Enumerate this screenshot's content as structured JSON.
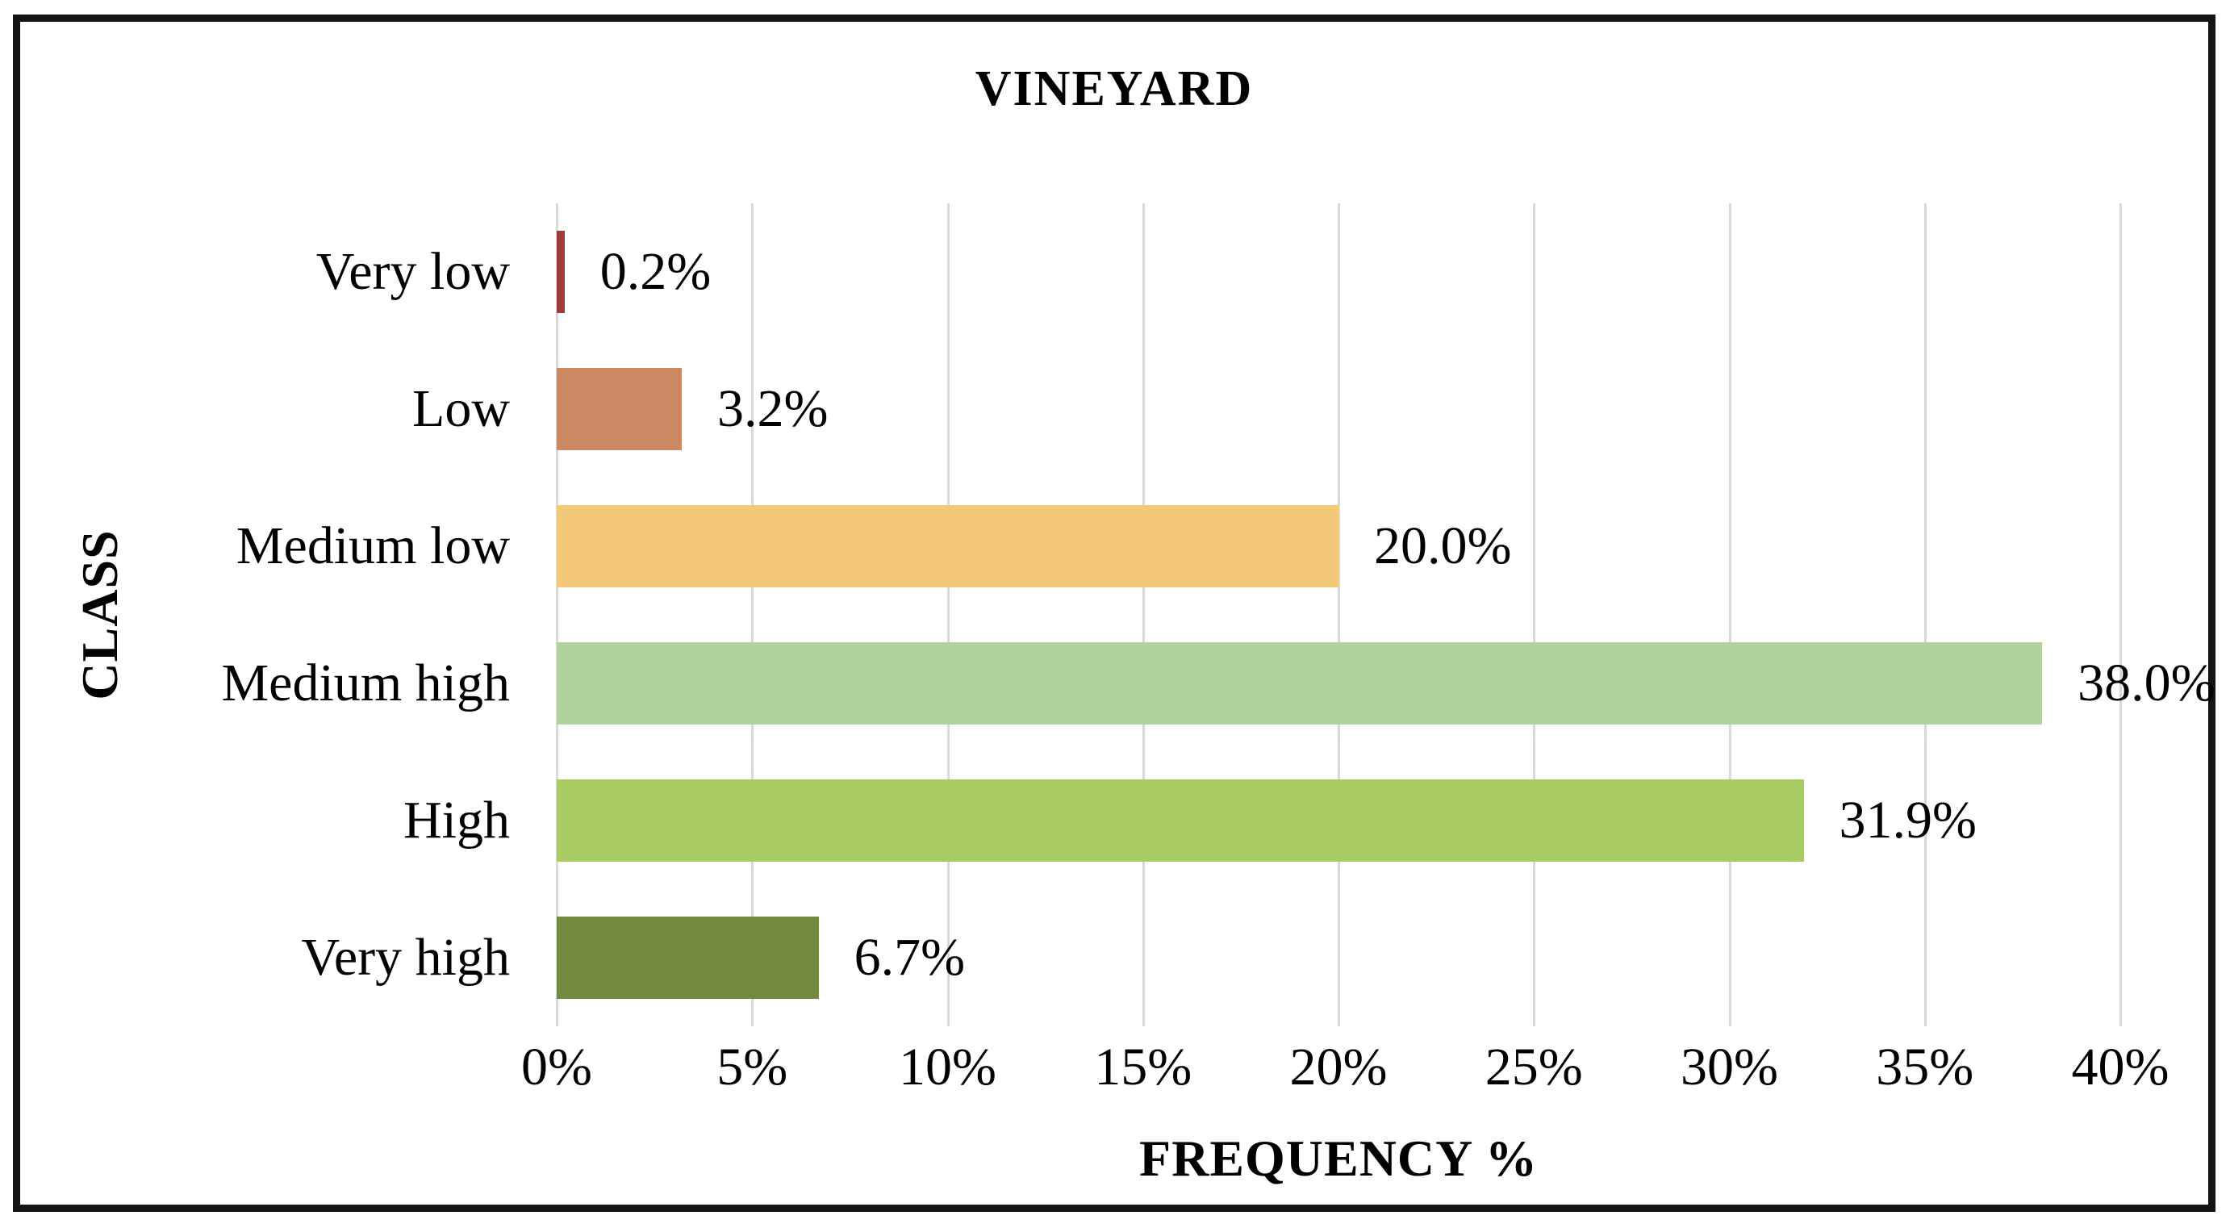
{
  "figure": {
    "title": "VINEYARD",
    "x_axis_label": "FREQUENCY %",
    "y_axis_label": "CLASS"
  },
  "chart_data": {
    "type": "bar",
    "orientation": "horizontal",
    "title": "VINEYARD",
    "xlabel": "FREQUENCY %",
    "ylabel": "CLASS",
    "categories": [
      "Very low",
      "Low",
      "Medium low",
      "Medium high",
      "High",
      "Very high"
    ],
    "values": [
      0.2,
      3.2,
      20.0,
      38.0,
      31.9,
      6.7
    ],
    "value_labels": [
      "0.2%",
      "3.2%",
      "20.0%",
      "38.0%",
      "31.9%",
      "6.7%"
    ],
    "bar_colors": [
      "#9E3C3C",
      "#CB8963",
      "#F3C878",
      "#B1D39B",
      "#A8CB64",
      "#73893F"
    ],
    "x_ticks": [
      "0%",
      "5%",
      "10%",
      "15%",
      "20%",
      "25%",
      "30%",
      "35%",
      "40%"
    ],
    "x_tick_values": [
      0,
      5,
      10,
      15,
      20,
      25,
      30,
      35,
      40
    ],
    "xlim": [
      0,
      40
    ],
    "grid": "vertical-gridlines",
    "gridline_color": "#D9D9D9",
    "legend": "none",
    "frame_color": "#141414",
    "background_color": "#FFFFFF"
  }
}
